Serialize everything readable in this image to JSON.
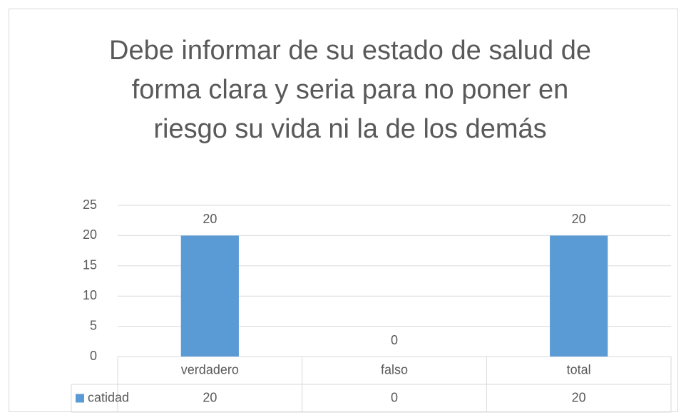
{
  "chart_data": {
    "type": "bar",
    "title": "Debe informar de su estado de salud de forma clara y seria para no poner en riesgo su vida ni la de los demás",
    "categories": [
      "verdadero",
      "falso",
      "total"
    ],
    "series": [
      {
        "name": "catidad",
        "color": "#5b9bd5",
        "values": [
          20,
          0,
          20
        ]
      }
    ],
    "ylim": [
      0,
      25
    ],
    "yticks": [
      0,
      5,
      10,
      15,
      20,
      25
    ],
    "grid": true,
    "data_table": true
  }
}
